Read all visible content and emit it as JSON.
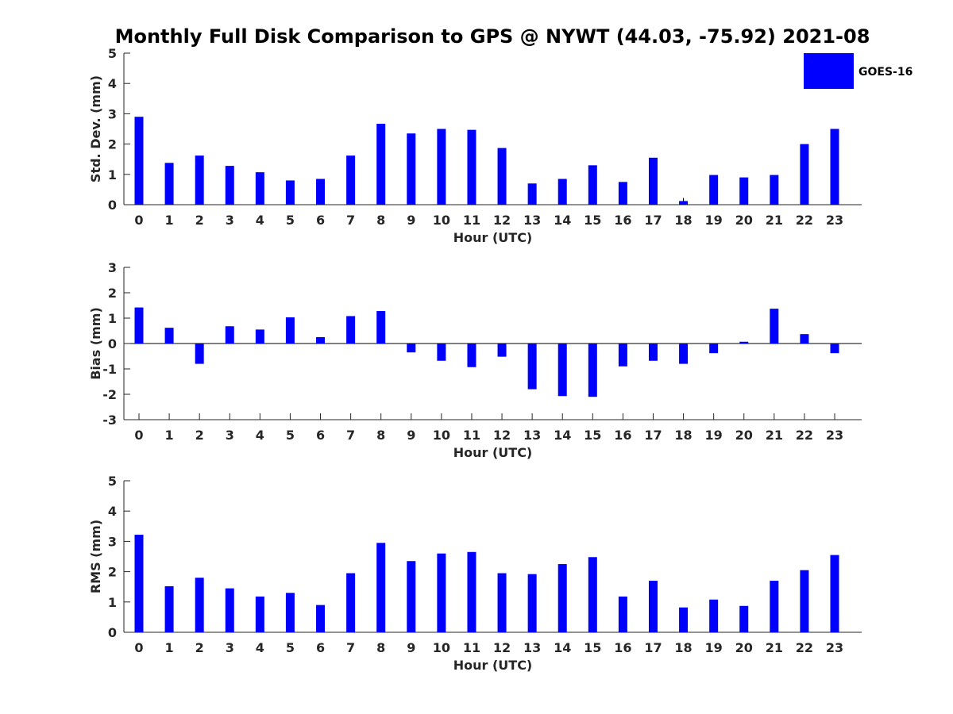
{
  "title": "Monthly Full Disk Comparison to GPS @ NYWT (44.03, -75.92) 2021-08",
  "legend": {
    "label": "GOES-16",
    "color": "#0000ff"
  },
  "bar_color": "#0000ff",
  "chart_data": [
    {
      "type": "bar",
      "name": "std-dev",
      "xlabel": "Hour (UTC)",
      "ylabel": "Std. Dev. (mm)",
      "ylim": [
        0,
        5
      ],
      "yticks": [
        0,
        1,
        2,
        3,
        4,
        5
      ],
      "categories": [
        "0",
        "1",
        "2",
        "3",
        "4",
        "5",
        "6",
        "7",
        "8",
        "9",
        "10",
        "11",
        "12",
        "13",
        "14",
        "15",
        "16",
        "17",
        "18",
        "19",
        "20",
        "21",
        "22",
        "23"
      ],
      "series": [
        {
          "name": "GOES-16",
          "values": [
            2.9,
            1.38,
            1.62,
            1.28,
            1.07,
            0.8,
            0.85,
            1.62,
            2.67,
            2.35,
            2.5,
            2.47,
            1.87,
            0.7,
            0.85,
            1.3,
            0.75,
            1.55,
            0.12,
            0.98,
            0.9,
            0.98,
            2.0,
            2.5
          ]
        }
      ],
      "error_bar": {
        "category": "18",
        "value": 0.22
      }
    },
    {
      "type": "bar",
      "name": "bias",
      "xlabel": "Hour (UTC)",
      "ylabel": "Bias (mm)",
      "ylim": [
        -3,
        3
      ],
      "yticks": [
        -3,
        -2,
        -1,
        0,
        1,
        2,
        3
      ],
      "categories": [
        "0",
        "1",
        "2",
        "3",
        "4",
        "5",
        "6",
        "7",
        "8",
        "9",
        "10",
        "11",
        "12",
        "13",
        "14",
        "15",
        "16",
        "17",
        "18",
        "19",
        "20",
        "21",
        "22",
        "23"
      ],
      "series": [
        {
          "name": "GOES-16",
          "values": [
            1.42,
            0.62,
            -0.8,
            0.68,
            0.55,
            1.03,
            0.25,
            1.08,
            1.28,
            -0.35,
            -0.68,
            -0.93,
            -0.52,
            -1.8,
            -2.07,
            -2.1,
            -0.9,
            -0.68,
            -0.8,
            -0.38,
            0.07,
            1.37,
            0.37,
            -0.38
          ]
        }
      ]
    },
    {
      "type": "bar",
      "name": "rms",
      "xlabel": "Hour (UTC)",
      "ylabel": "RMS (mm)",
      "ylim": [
        0,
        5
      ],
      "yticks": [
        0,
        1,
        2,
        3,
        4,
        5
      ],
      "categories": [
        "0",
        "1",
        "2",
        "3",
        "4",
        "5",
        "6",
        "7",
        "8",
        "9",
        "10",
        "11",
        "12",
        "13",
        "14",
        "15",
        "16",
        "17",
        "18",
        "19",
        "20",
        "21",
        "22",
        "23"
      ],
      "series": [
        {
          "name": "GOES-16",
          "values": [
            3.22,
            1.52,
            1.8,
            1.45,
            1.18,
            1.3,
            0.9,
            1.95,
            2.95,
            2.35,
            2.6,
            2.65,
            1.95,
            1.92,
            2.25,
            2.48,
            1.18,
            1.7,
            0.82,
            1.08,
            0.87,
            1.7,
            2.05,
            2.55
          ]
        }
      ]
    }
  ]
}
